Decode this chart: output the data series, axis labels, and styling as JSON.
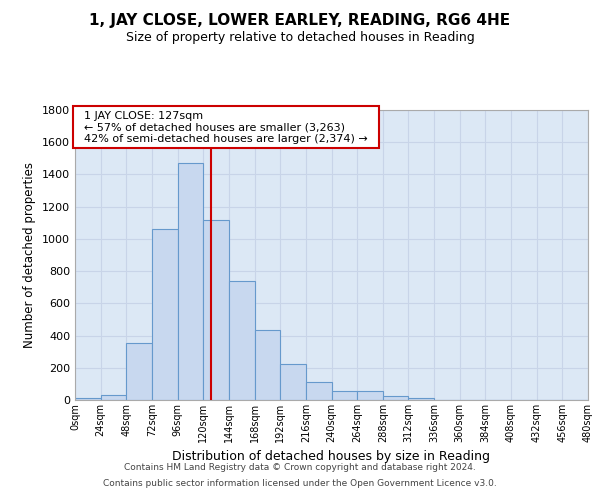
{
  "title": "1, JAY CLOSE, LOWER EARLEY, READING, RG6 4HE",
  "subtitle": "Size of property relative to detached houses in Reading",
  "xlabel": "Distribution of detached houses by size in Reading",
  "ylabel": "Number of detached properties",
  "footer_line1": "Contains HM Land Registry data © Crown copyright and database right 2024.",
  "footer_line2": "Contains public sector information licensed under the Open Government Licence v3.0.",
  "annotation_line1": "1 JAY CLOSE: 127sqm",
  "annotation_line2": "← 57% of detached houses are smaller (3,263)",
  "annotation_line3": "42% of semi-detached houses are larger (2,374) →",
  "bar_edges": [
    0,
    24,
    48,
    72,
    96,
    120,
    144,
    168,
    192,
    216,
    240,
    264,
    288,
    312,
    336,
    360,
    384,
    408,
    432,
    456,
    480
  ],
  "bar_heights": [
    15,
    30,
    355,
    1060,
    1470,
    1120,
    740,
    435,
    225,
    110,
    55,
    55,
    25,
    15,
    0,
    0,
    0,
    0,
    0,
    0
  ],
  "bar_color": "#c8d8ef",
  "bar_edgecolor": "#6699cc",
  "vline_color": "#cc0000",
  "vline_x": 127,
  "annotation_box_edgecolor": "#cc0000",
  "ylim": [
    0,
    1800
  ],
  "yticks": [
    0,
    200,
    400,
    600,
    800,
    1000,
    1200,
    1400,
    1600,
    1800
  ],
  "grid_color": "#c8d4e8",
  "background_color": "#ffffff",
  "plot_bg_color": "#dce8f5"
}
